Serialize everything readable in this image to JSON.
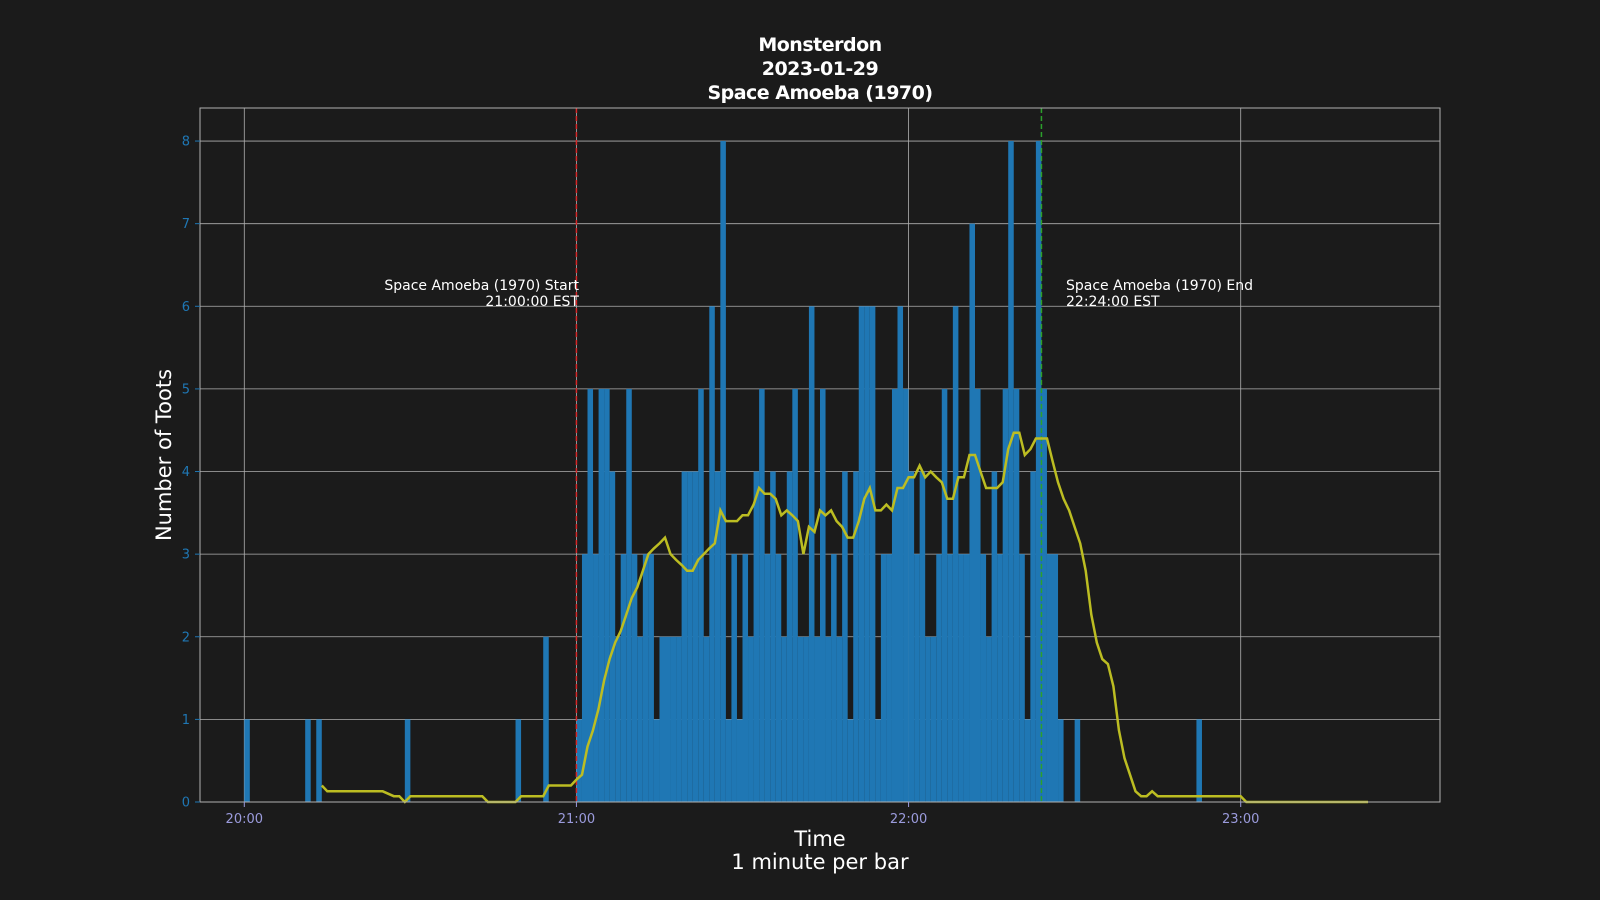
{
  "title_lines": [
    "Monsterdon",
    "2023-01-29",
    "Space Amoeba (1970)"
  ],
  "colors": {
    "background": "#1b1b1b",
    "bar": "#1f77b4",
    "rolling_line": "#bcbd22",
    "start_line": "#d62728",
    "end_line": "#2ca02c",
    "grid": "#b0b0b0",
    "y_tick": "#1f77b4",
    "x_tick": "#9b9bdc"
  },
  "annotations": {
    "start": {
      "line1": "Space Amoeba (1970) Start",
      "line2": "21:00:00 EST"
    },
    "end": {
      "line1": "Space Amoeba (1970) End",
      "line2": "22:24:00 EST"
    }
  },
  "chart_data": {
    "type": "bar",
    "title": "Monsterdon\n2023-01-29\nSpace Amoeba (1970)",
    "xlabel": "Time\n1 minute per bar",
    "ylabel": "Number of Toots",
    "x_unit": "time (HH:MM)",
    "xlim": [
      "19:52",
      "23:36"
    ],
    "ylim": [
      0,
      8.4
    ],
    "x_ticks": [
      "20:00",
      "21:00",
      "22:00",
      "23:00"
    ],
    "y_ticks": [
      0,
      1,
      2,
      3,
      4,
      5,
      6,
      7,
      8
    ],
    "grid": true,
    "vertical_lines": [
      {
        "label": "Space Amoeba (1970) Start",
        "time": "21:00",
        "style": "dashed",
        "color": "red"
      },
      {
        "label": "Space Amoeba (1970) End",
        "time": "22:24",
        "style": "dashed",
        "color": "green"
      }
    ],
    "series": [
      {
        "kind": "bar",
        "points": [
          [
            "20:00",
            1
          ],
          [
            "20:11",
            1
          ],
          [
            "20:13",
            1
          ],
          [
            "20:29",
            1
          ],
          [
            "20:49",
            1
          ],
          [
            "20:54",
            2
          ],
          [
            "21:00",
            1
          ],
          [
            "21:01",
            3
          ],
          [
            "21:02",
            5
          ],
          [
            "21:03",
            3
          ],
          [
            "21:04",
            5
          ],
          [
            "21:05",
            5
          ],
          [
            "21:06",
            4
          ],
          [
            "21:07",
            2
          ],
          [
            "21:08",
            3
          ],
          [
            "21:09",
            5
          ],
          [
            "21:10",
            3
          ],
          [
            "21:11",
            2
          ],
          [
            "21:12",
            3
          ],
          [
            "21:13",
            3
          ],
          [
            "21:14",
            1
          ],
          [
            "21:15",
            2
          ],
          [
            "21:16",
            2
          ],
          [
            "21:17",
            2
          ],
          [
            "21:18",
            2
          ],
          [
            "21:19",
            4
          ],
          [
            "21:20",
            4
          ],
          [
            "21:21",
            4
          ],
          [
            "21:22",
            5
          ],
          [
            "21:23",
            2
          ],
          [
            "21:24",
            6
          ],
          [
            "21:25",
            4
          ],
          [
            "21:26",
            8
          ],
          [
            "21:27",
            1
          ],
          [
            "21:28",
            3
          ],
          [
            "21:29",
            1
          ],
          [
            "21:30",
            3
          ],
          [
            "21:31",
            2
          ],
          [
            "21:32",
            4
          ],
          [
            "21:33",
            5
          ],
          [
            "21:34",
            3
          ],
          [
            "21:35",
            4
          ],
          [
            "21:36",
            3
          ],
          [
            "21:37",
            2
          ],
          [
            "21:38",
            4
          ],
          [
            "21:39",
            5
          ],
          [
            "21:40",
            2
          ],
          [
            "21:41",
            2
          ],
          [
            "21:42",
            6
          ],
          [
            "21:43",
            2
          ],
          [
            "21:44",
            5
          ],
          [
            "21:45",
            2
          ],
          [
            "21:46",
            3
          ],
          [
            "21:47",
            2
          ],
          [
            "21:48",
            4
          ],
          [
            "21:49",
            1
          ],
          [
            "21:50",
            4
          ],
          [
            "21:51",
            6
          ],
          [
            "21:52",
            6
          ],
          [
            "21:53",
            6
          ],
          [
            "21:54",
            1
          ],
          [
            "21:55",
            3
          ],
          [
            "21:56",
            3
          ],
          [
            "21:57",
            5
          ],
          [
            "21:58",
            6
          ],
          [
            "21:59",
            5
          ],
          [
            "22:00",
            4
          ],
          [
            "22:01",
            3
          ],
          [
            "22:02",
            4
          ],
          [
            "22:03",
            2
          ],
          [
            "22:04",
            2
          ],
          [
            "22:05",
            3
          ],
          [
            "22:06",
            5
          ],
          [
            "22:07",
            3
          ],
          [
            "22:08",
            6
          ],
          [
            "22:09",
            3
          ],
          [
            "22:10",
            3
          ],
          [
            "22:11",
            7
          ],
          [
            "22:12",
            5
          ],
          [
            "22:13",
            3
          ],
          [
            "22:14",
            2
          ],
          [
            "22:15",
            4
          ],
          [
            "22:16",
            3
          ],
          [
            "22:17",
            5
          ],
          [
            "22:18",
            8
          ],
          [
            "22:19",
            5
          ],
          [
            "22:20",
            3
          ],
          [
            "22:21",
            1
          ],
          [
            "22:22",
            4
          ],
          [
            "22:23",
            8
          ],
          [
            "22:24",
            5
          ],
          [
            "22:25",
            3
          ],
          [
            "22:26",
            3
          ],
          [
            "22:27",
            1
          ],
          [
            "22:30",
            1
          ],
          [
            "22:52",
            1
          ]
        ]
      },
      {
        "kind": "line",
        "points": [
          [
            "20:14",
            0.2
          ],
          [
            "20:15",
            0.13
          ],
          [
            "20:17",
            0.13
          ],
          [
            "20:25",
            0.13
          ],
          [
            "20:27",
            0.07
          ],
          [
            "20:28",
            0.07
          ],
          [
            "20:29",
            0
          ],
          [
            "20:30",
            0.07
          ],
          [
            "20:35",
            0.07
          ],
          [
            "20:43",
            0.07
          ],
          [
            "20:44",
            0
          ],
          [
            "20:49",
            0
          ],
          [
            "20:50",
            0.07
          ],
          [
            "20:54",
            0.07
          ],
          [
            "20:55",
            0.2
          ],
          [
            "20:59",
            0.2
          ],
          [
            "21:00",
            0.27
          ],
          [
            "21:01",
            0.33
          ],
          [
            "21:02",
            0.67
          ],
          [
            "21:03",
            0.87
          ],
          [
            "21:04",
            1.13
          ],
          [
            "21:05",
            1.47
          ],
          [
            "21:06",
            1.73
          ],
          [
            "21:07",
            1.93
          ],
          [
            "21:08",
            2.07
          ],
          [
            "21:09",
            2.27
          ],
          [
            "21:10",
            2.47
          ],
          [
            "21:11",
            2.6
          ],
          [
            "21:12",
            2.8
          ],
          [
            "21:13",
            3
          ],
          [
            "21:14",
            3.07
          ],
          [
            "21:15",
            3.13
          ],
          [
            "21:16",
            3.2
          ],
          [
            "21:17",
            3
          ],
          [
            "21:18",
            2.93
          ],
          [
            "21:19",
            2.87
          ],
          [
            "21:20",
            2.8
          ],
          [
            "21:21",
            2.8
          ],
          [
            "21:22",
            2.93
          ],
          [
            "21:23",
            3
          ],
          [
            "21:24",
            3.07
          ],
          [
            "21:25",
            3.13
          ],
          [
            "21:26",
            3.53
          ],
          [
            "21:27",
            3.4
          ],
          [
            "21:28",
            3.4
          ],
          [
            "21:29",
            3.4
          ],
          [
            "21:30",
            3.47
          ],
          [
            "21:31",
            3.47
          ],
          [
            "21:32",
            3.6
          ],
          [
            "21:33",
            3.8
          ],
          [
            "21:34",
            3.73
          ],
          [
            "21:35",
            3.73
          ],
          [
            "21:36",
            3.67
          ],
          [
            "21:37",
            3.47
          ],
          [
            "21:38",
            3.53
          ],
          [
            "21:39",
            3.47
          ],
          [
            "21:40",
            3.4
          ],
          [
            "21:41",
            3
          ],
          [
            "21:42",
            3.33
          ],
          [
            "21:43",
            3.27
          ],
          [
            "21:44",
            3.53
          ],
          [
            "21:45",
            3.47
          ],
          [
            "21:46",
            3.53
          ],
          [
            "21:47",
            3.4
          ],
          [
            "21:48",
            3.33
          ],
          [
            "21:49",
            3.2
          ],
          [
            "21:50",
            3.2
          ],
          [
            "21:51",
            3.4
          ],
          [
            "21:52",
            3.67
          ],
          [
            "21:53",
            3.8
          ],
          [
            "21:54",
            3.53
          ],
          [
            "21:55",
            3.53
          ],
          [
            "21:56",
            3.6
          ],
          [
            "21:57",
            3.53
          ],
          [
            "21:58",
            3.8
          ],
          [
            "21:59",
            3.8
          ],
          [
            "22:00",
            3.93
          ],
          [
            "22:01",
            3.93
          ],
          [
            "22:02",
            4.07
          ],
          [
            "22:03",
            3.93
          ],
          [
            "22:04",
            4
          ],
          [
            "22:05",
            3.93
          ],
          [
            "22:06",
            3.87
          ],
          [
            "22:07",
            3.67
          ],
          [
            "22:08",
            3.67
          ],
          [
            "22:09",
            3.93
          ],
          [
            "22:10",
            3.93
          ],
          [
            "22:11",
            4.2
          ],
          [
            "22:12",
            4.2
          ],
          [
            "22:13",
            4
          ],
          [
            "22:14",
            3.8
          ],
          [
            "22:15",
            3.8
          ],
          [
            "22:16",
            3.8
          ],
          [
            "22:17",
            3.87
          ],
          [
            "22:18",
            4.27
          ],
          [
            "22:19",
            4.47
          ],
          [
            "22:20",
            4.47
          ],
          [
            "22:21",
            4.2
          ],
          [
            "22:22",
            4.27
          ],
          [
            "22:23",
            4.4
          ],
          [
            "22:24",
            4.4
          ],
          [
            "22:25",
            4.4
          ],
          [
            "22:26",
            4.13
          ],
          [
            "22:27",
            3.87
          ],
          [
            "22:28",
            3.67
          ],
          [
            "22:29",
            3.53
          ],
          [
            "22:30",
            3.33
          ],
          [
            "22:31",
            3.13
          ],
          [
            "22:32",
            2.8
          ],
          [
            "22:33",
            2.27
          ],
          [
            "22:34",
            1.93
          ],
          [
            "22:35",
            1.73
          ],
          [
            "22:36",
            1.67
          ],
          [
            "22:37",
            1.4
          ],
          [
            "22:38",
            0.87
          ],
          [
            "22:39",
            0.53
          ],
          [
            "22:40",
            0.33
          ],
          [
            "22:41",
            0.13
          ],
          [
            "22:42",
            0.07
          ],
          [
            "22:43",
            0.07
          ],
          [
            "22:44",
            0.13
          ],
          [
            "22:45",
            0.07
          ],
          [
            "22:50",
            0.07
          ],
          [
            "23:00",
            0.07
          ],
          [
            "22:59",
            0.07
          ],
          [
            "23:01",
            0
          ],
          [
            "23:10",
            0
          ],
          [
            "23:20",
            0
          ],
          [
            "23:23",
            0
          ]
        ]
      }
    ]
  }
}
